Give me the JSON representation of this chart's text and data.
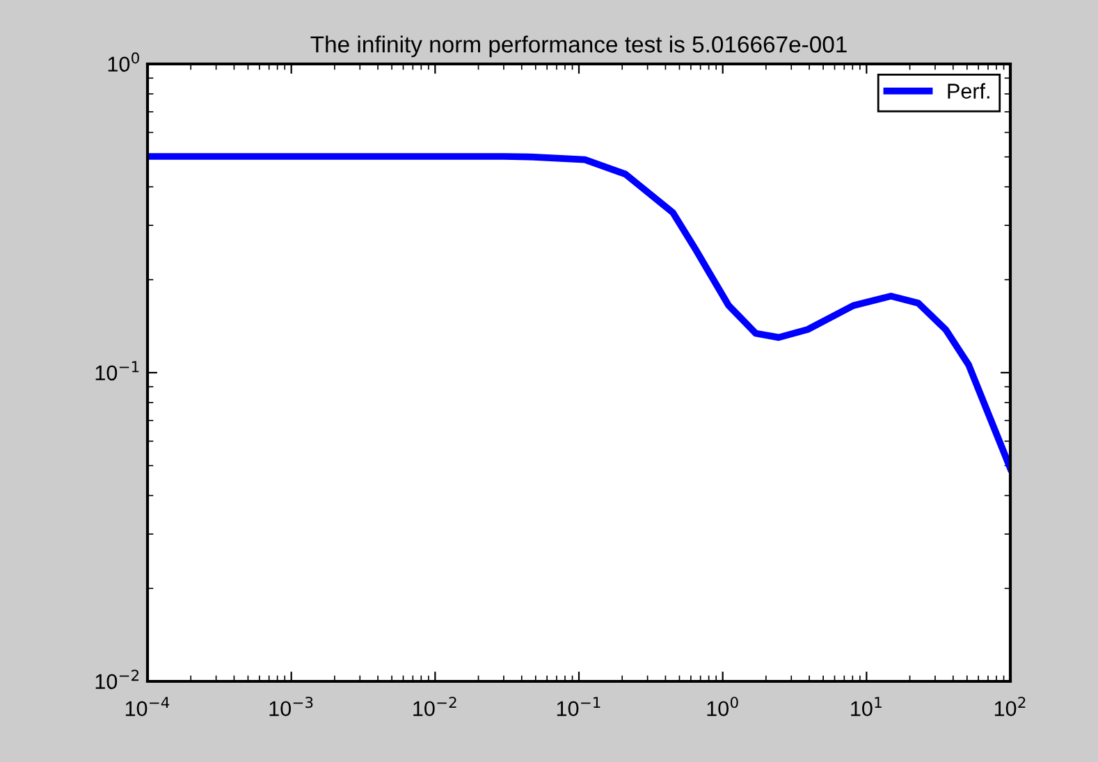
{
  "chart_data": {
    "type": "line",
    "title": "The infinity norm performance test is 5.016667e-001",
    "series": [
      {
        "name": "Perf.",
        "color": "#0000ff",
        "x": [
          0.0001,
          0.001,
          0.01,
          0.03,
          0.045,
          0.11,
          0.21,
          0.45,
          0.65,
          1.1,
          1.7,
          2.45,
          3.9,
          8.1,
          14.8,
          22.9,
          35.5,
          51.3,
          67.6,
          100
        ],
        "values": [
          0.5017,
          0.5017,
          0.5017,
          0.5017,
          0.5,
          0.49,
          0.44,
          0.33,
          0.25,
          0.165,
          0.134,
          0.13,
          0.138,
          0.165,
          0.177,
          0.168,
          0.138,
          0.106,
          0.077,
          0.049
        ]
      }
    ],
    "log": "xy",
    "xlim": [
      0.0001,
      100
    ],
    "ylim": [
      0.01,
      1
    ],
    "xticks": [
      {
        "value": 0.0001,
        "label": "10$^{−4}$"
      },
      {
        "value": 0.001,
        "label": "10$^{−3}$"
      },
      {
        "value": 0.01,
        "label": "10$^{−2}$"
      },
      {
        "value": 0.1,
        "label": "10$^{−1}$"
      },
      {
        "value": 1,
        "label": "10$^{0}$"
      },
      {
        "value": 10,
        "label": "10$^{1}$"
      },
      {
        "value": 100,
        "label": "10$^{2}$"
      }
    ],
    "yticks": [
      {
        "value": 0.01,
        "label": "10$^{−2}$"
      },
      {
        "value": 0.1,
        "label": "10$^{−1}$"
      },
      {
        "value": 1,
        "label": "10$^{0}$"
      }
    ],
    "legend": "top right",
    "grid": false,
    "line_style": "solid",
    "marker": "none"
  }
}
